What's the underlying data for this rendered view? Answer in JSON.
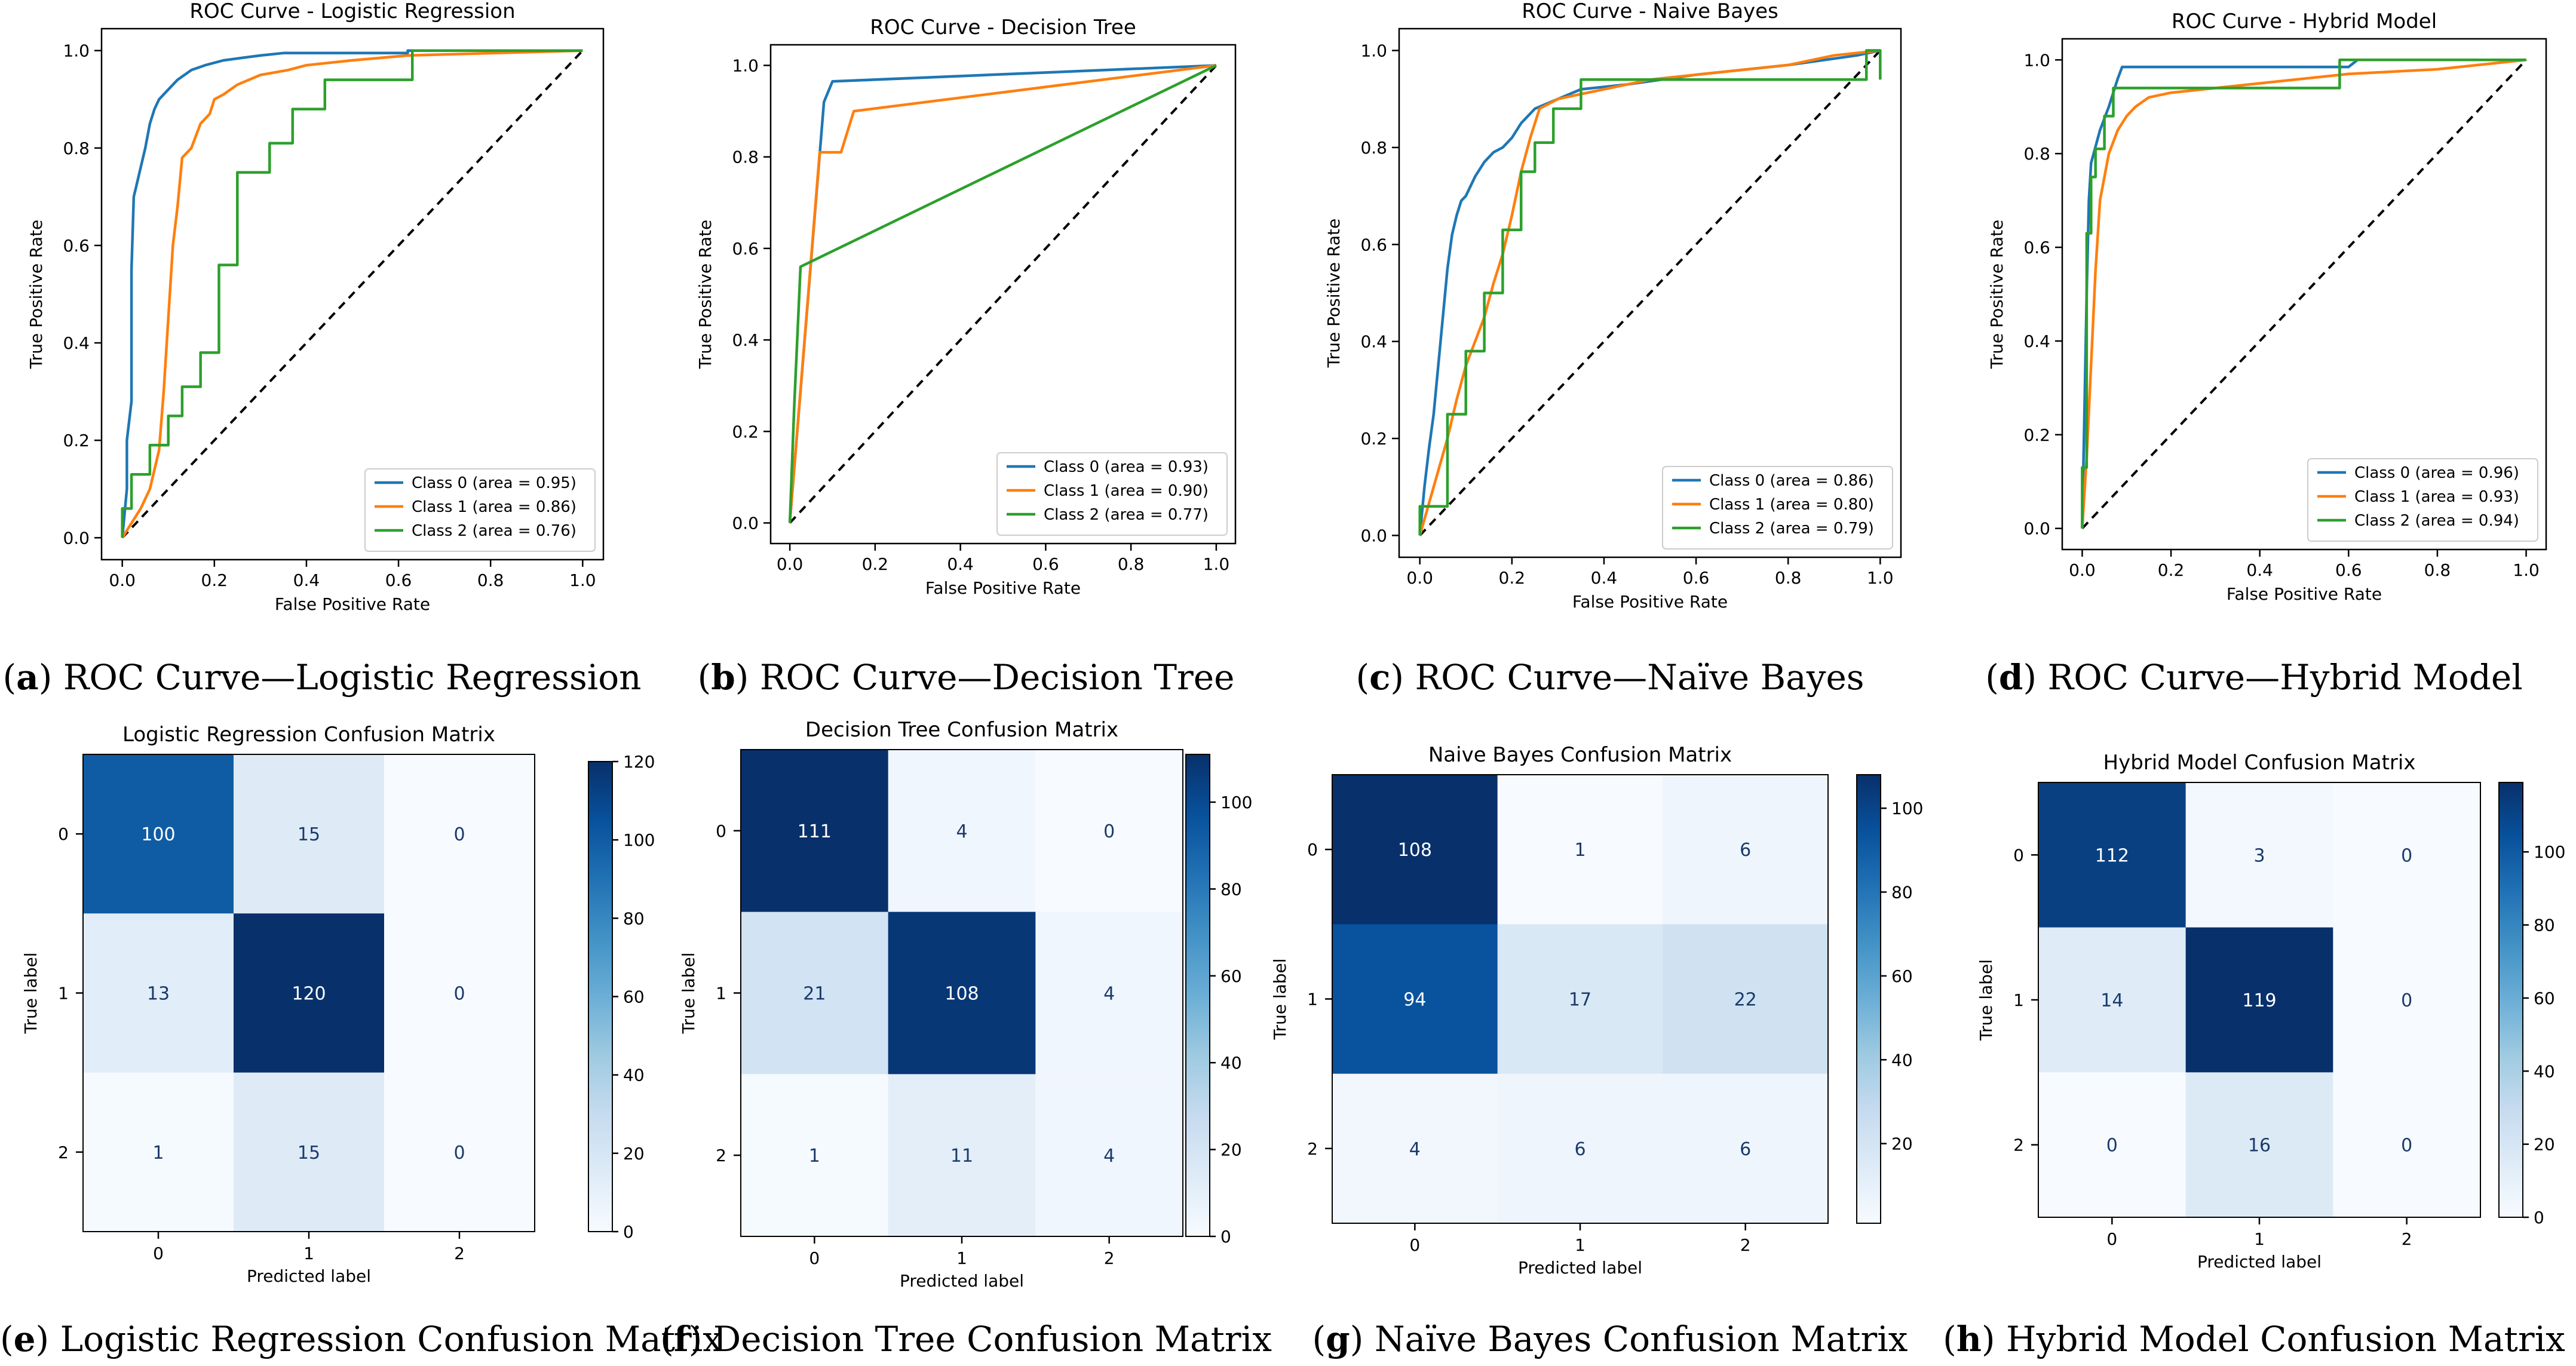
{
  "chart_data": [
    {
      "type": "line",
      "panel": "a",
      "title": "ROC Curve - Logistic Regression",
      "xlabel": "False Positive Rate",
      "ylabel": "True Positive Rate",
      "xlim": [
        0,
        1
      ],
      "ylim": [
        0,
        1
      ],
      "ticks": [
        "0.0",
        "0.2",
        "0.4",
        "0.6",
        "0.8",
        "1.0"
      ],
      "legend_position": "lower right",
      "series": [
        {
          "name": "Class 0 (area = 0.95)",
          "color": "#1f77b4",
          "x": [
            0,
            0.01,
            0.01,
            0.02,
            0.02,
            0.025,
            0.03,
            0.04,
            0.05,
            0.06,
            0.07,
            0.08,
            0.1,
            0.12,
            0.15,
            0.18,
            0.22,
            0.26,
            0.3,
            0.35,
            0.62,
            0.62,
            0.7,
            1.0
          ],
          "y": [
            0,
            0.1,
            0.2,
            0.28,
            0.55,
            0.7,
            0.72,
            0.76,
            0.8,
            0.85,
            0.88,
            0.9,
            0.92,
            0.94,
            0.96,
            0.97,
            0.98,
            0.985,
            0.99,
            0.995,
            0.995,
            1.0,
            1.0,
            1.0
          ]
        },
        {
          "name": "Class 1 (area = 0.86)",
          "color": "#ff7f0e",
          "x": [
            0,
            0.02,
            0.04,
            0.06,
            0.08,
            0.09,
            0.1,
            0.11,
            0.12,
            0.13,
            0.15,
            0.17,
            0.19,
            0.2,
            0.22,
            0.25,
            0.3,
            0.36,
            0.4,
            0.5,
            0.62,
            1.0
          ],
          "y": [
            0,
            0.03,
            0.06,
            0.1,
            0.18,
            0.3,
            0.45,
            0.6,
            0.68,
            0.78,
            0.8,
            0.85,
            0.87,
            0.9,
            0.91,
            0.93,
            0.95,
            0.96,
            0.97,
            0.98,
            0.99,
            1.0
          ]
        },
        {
          "name": "Class 2 (area = 0.76)",
          "color": "#2ca02c",
          "x": [
            0,
            0.0,
            0.02,
            0.02,
            0.06,
            0.06,
            0.1,
            0.1,
            0.13,
            0.13,
            0.17,
            0.17,
            0.21,
            0.21,
            0.25,
            0.25,
            0.32,
            0.32,
            0.37,
            0.37,
            0.44,
            0.44,
            0.63,
            0.63,
            1.0
          ],
          "y": [
            0,
            0.06,
            0.06,
            0.13,
            0.13,
            0.19,
            0.19,
            0.25,
            0.25,
            0.31,
            0.31,
            0.38,
            0.38,
            0.56,
            0.56,
            0.75,
            0.75,
            0.81,
            0.81,
            0.88,
            0.88,
            0.94,
            0.94,
            1.0,
            1.0
          ]
        }
      ]
    },
    {
      "type": "line",
      "panel": "b",
      "title": "ROC Curve - Decision Tree",
      "xlabel": "False Positive Rate",
      "ylabel": "True Positive Rate",
      "xlim": [
        0,
        1
      ],
      "ylim": [
        0,
        1
      ],
      "ticks": [
        "0.0",
        "0.2",
        "0.4",
        "0.6",
        "0.8",
        "1.0"
      ],
      "legend_position": "lower right",
      "series": [
        {
          "name": "Class 0 (area = 0.93)",
          "color": "#1f77b4",
          "x": [
            0,
            0.08,
            0.1,
            1.0
          ],
          "y": [
            0,
            0.92,
            0.965,
            1.0
          ]
        },
        {
          "name": "Class 1 (area = 0.90)",
          "color": "#ff7f0e",
          "x": [
            0,
            0.07,
            0.12,
            0.15,
            1.0
          ],
          "y": [
            0,
            0.81,
            0.81,
            0.9,
            1.0
          ]
        },
        {
          "name": "Class 2 (area = 0.77)",
          "color": "#2ca02c",
          "x": [
            0,
            0.01,
            0.025,
            1.0
          ],
          "y": [
            0,
            0.25,
            0.56,
            1.0
          ]
        }
      ]
    },
    {
      "type": "line",
      "panel": "c",
      "title": "ROC Curve - Naive Bayes",
      "xlabel": "False Positive Rate",
      "ylabel": "True Positive Rate",
      "xlim": [
        0,
        1
      ],
      "ylim": [
        0,
        1
      ],
      "ticks": [
        "0.0",
        "0.2",
        "0.4",
        "0.6",
        "0.8",
        "1.0"
      ],
      "legend_position": "lower right",
      "series": [
        {
          "name": "Class 0 (area = 0.86)",
          "color": "#1f77b4",
          "x": [
            0,
            0.01,
            0.02,
            0.03,
            0.04,
            0.05,
            0.06,
            0.07,
            0.08,
            0.09,
            0.1,
            0.12,
            0.14,
            0.16,
            0.18,
            0.2,
            0.22,
            0.25,
            0.3,
            0.35,
            0.45,
            0.6,
            0.8,
            0.95,
            1.0
          ],
          "y": [
            0,
            0.1,
            0.18,
            0.25,
            0.35,
            0.45,
            0.55,
            0.62,
            0.66,
            0.69,
            0.7,
            0.74,
            0.77,
            0.79,
            0.8,
            0.82,
            0.85,
            0.88,
            0.9,
            0.92,
            0.93,
            0.95,
            0.97,
            0.99,
            1.0
          ]
        },
        {
          "name": "Class 1 (area = 0.80)",
          "color": "#ff7f0e",
          "x": [
            0,
            0.03,
            0.06,
            0.08,
            0.1,
            0.12,
            0.14,
            0.16,
            0.18,
            0.2,
            0.22,
            0.24,
            0.26,
            0.3,
            0.35,
            0.4,
            0.5,
            0.6,
            0.7,
            0.8,
            0.9,
            1.0
          ],
          "y": [
            0,
            0.1,
            0.2,
            0.28,
            0.35,
            0.4,
            0.45,
            0.52,
            0.58,
            0.66,
            0.75,
            0.82,
            0.88,
            0.9,
            0.91,
            0.92,
            0.94,
            0.95,
            0.96,
            0.97,
            0.99,
            1.0
          ]
        },
        {
          "name": "Class 2 (area = 0.79)",
          "color": "#2ca02c",
          "x": [
            0,
            0.0,
            0.06,
            0.06,
            0.1,
            0.1,
            0.14,
            0.14,
            0.18,
            0.18,
            0.22,
            0.22,
            0.25,
            0.25,
            0.29,
            0.29,
            0.35,
            0.35,
            0.48,
            0.48,
            0.97,
            0.97,
            1.0,
            1.0
          ],
          "y": [
            0,
            0.06,
            0.06,
            0.25,
            0.25,
            0.38,
            0.38,
            0.5,
            0.5,
            0.63,
            0.63,
            0.75,
            0.75,
            0.81,
            0.81,
            0.88,
            0.88,
            0.94,
            0.94,
            0.94,
            0.94,
            1.0,
            1.0,
            0.94
          ]
        }
      ]
    },
    {
      "type": "line",
      "panel": "d",
      "title": "ROC Curve - Hybrid Model",
      "xlabel": "False Positive Rate",
      "ylabel": "True Positive Rate",
      "xlim": [
        0,
        1
      ],
      "ylim": [
        0,
        1
      ],
      "ticks": [
        "0.0",
        "0.2",
        "0.4",
        "0.6",
        "0.8",
        "1.0"
      ],
      "legend_position": "lower right",
      "series": [
        {
          "name": "Class 0 (area = 0.96)",
          "color": "#1f77b4",
          "x": [
            0,
            0.005,
            0.01,
            0.015,
            0.02,
            0.04,
            0.06,
            0.08,
            0.09,
            0.6,
            0.62,
            1.0
          ],
          "y": [
            0,
            0.25,
            0.5,
            0.7,
            0.78,
            0.85,
            0.9,
            0.96,
            0.985,
            0.985,
            1.0,
            1.0
          ]
        },
        {
          "name": "Class 1 (area = 0.93)",
          "color": "#ff7f0e",
          "x": [
            0,
            0.01,
            0.02,
            0.03,
            0.04,
            0.06,
            0.08,
            0.1,
            0.12,
            0.15,
            0.2,
            0.3,
            0.4,
            0.6,
            0.8,
            1.0
          ],
          "y": [
            0,
            0.15,
            0.35,
            0.55,
            0.7,
            0.8,
            0.85,
            0.88,
            0.9,
            0.92,
            0.93,
            0.94,
            0.95,
            0.97,
            0.98,
            1.0
          ]
        },
        {
          "name": "Class 2 (area = 0.94)",
          "color": "#2ca02c",
          "x": [
            0,
            0.0,
            0.01,
            0.01,
            0.02,
            0.02,
            0.03,
            0.03,
            0.05,
            0.05,
            0.07,
            0.07,
            0.09,
            0.09,
            0.58,
            0.58,
            1.0
          ],
          "y": [
            0,
            0.13,
            0.13,
            0.63,
            0.63,
            0.75,
            0.75,
            0.81,
            0.81,
            0.88,
            0.88,
            0.94,
            0.94,
            0.94,
            0.94,
            1.0,
            1.0
          ]
        }
      ]
    },
    {
      "type": "heatmap",
      "panel": "e",
      "title": "Logistic Regression Confusion Matrix",
      "xlabel": "Predicted label",
      "ylabel": "True label",
      "categories": [
        "0",
        "1",
        "2"
      ],
      "matrix": [
        [
          100,
          15,
          0
        ],
        [
          13,
          120,
          0
        ],
        [
          1,
          15,
          0
        ]
      ],
      "colorbar_range": [
        0,
        120
      ],
      "colorbar_ticks": [
        "0",
        "20",
        "40",
        "60",
        "80",
        "100",
        "120"
      ]
    },
    {
      "type": "heatmap",
      "panel": "f",
      "title": "Decision Tree Confusion Matrix",
      "xlabel": "Predicted label",
      "ylabel": "True label",
      "categories": [
        "0",
        "1",
        "2"
      ],
      "matrix": [
        [
          111,
          4,
          0
        ],
        [
          21,
          108,
          4
        ],
        [
          1,
          11,
          4
        ]
      ],
      "colorbar_range": [
        0,
        111
      ],
      "colorbar_ticks": [
        "0",
        "20",
        "40",
        "60",
        "80",
        "100"
      ]
    },
    {
      "type": "heatmap",
      "panel": "g",
      "title": "Naive Bayes Confusion Matrix",
      "xlabel": "Predicted label",
      "ylabel": "True label",
      "categories": [
        "0",
        "1",
        "2"
      ],
      "matrix": [
        [
          108,
          1,
          6
        ],
        [
          94,
          17,
          22
        ],
        [
          4,
          6,
          6
        ]
      ],
      "colorbar_range": [
        1,
        108
      ],
      "colorbar_ticks": [
        "20",
        "40",
        "60",
        "80",
        "100"
      ]
    },
    {
      "type": "heatmap",
      "panel": "h",
      "title": "Hybrid Model Confusion Matrix",
      "xlabel": "Predicted label",
      "ylabel": "True label",
      "categories": [
        "0",
        "1",
        "2"
      ],
      "matrix": [
        [
          112,
          3,
          0
        ],
        [
          14,
          119,
          0
        ],
        [
          0,
          16,
          0
        ]
      ],
      "colorbar_range": [
        0,
        119
      ],
      "colorbar_ticks": [
        "0",
        "20",
        "40",
        "60",
        "80",
        "100"
      ]
    }
  ],
  "captions": [
    {
      "letter": "a",
      "text": "ROC Curve—Logistic Regression"
    },
    {
      "letter": "b",
      "text": "ROC Curve—Decision Tree"
    },
    {
      "letter": "c",
      "text": "ROC Curve—Naïve Bayes"
    },
    {
      "letter": "d",
      "text": "ROC Curve—Hybrid Model"
    },
    {
      "letter": "e",
      "text": "Logistic Regression Confusion Matrix"
    },
    {
      "letter": "f",
      "text": "Decision Tree Confusion Matrix"
    },
    {
      "letter": "g",
      "text": "Naïve Bayes Confusion Matrix"
    },
    {
      "letter": "h",
      "text": "Hybrid Model Confusion Matrix"
    }
  ]
}
